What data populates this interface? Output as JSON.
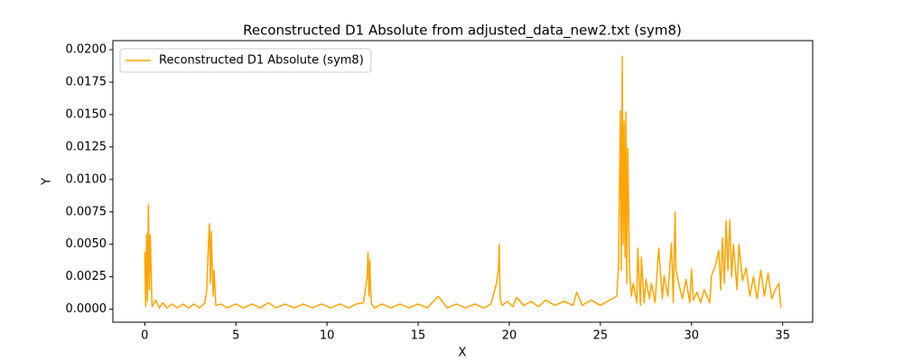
{
  "chart_data": {
    "type": "line",
    "title": "Reconstructed D1 Absolute from adjusted_data_new2.txt (sym8)",
    "x_label": "X",
    "y_label": "Y",
    "xlim": [
      -1.75,
      36.65
    ],
    "ylim": [
      -0.001,
      0.0207
    ],
    "xticks": [
      0,
      5,
      10,
      15,
      20,
      25,
      30,
      35
    ],
    "yticks": [
      {
        "value": 0,
        "label": "0.0000"
      },
      {
        "value": 0.0025,
        "label": "0.0025"
      },
      {
        "value": 0.005,
        "label": "0.0050"
      },
      {
        "value": 0.0075,
        "label": "0.0075"
      },
      {
        "value": 0.01,
        "label": "0.0100"
      },
      {
        "value": 0.0125,
        "label": "0.0125"
      },
      {
        "value": 0.015,
        "label": "0.0150"
      },
      {
        "value": 0.0175,
        "label": "0.0175"
      },
      {
        "value": 0.02,
        "label": "0.0200"
      }
    ],
    "legend": "upper left",
    "x": [
      0,
      0.05,
      0.1,
      0.15,
      0.2,
      0.25,
      0.3,
      0.4,
      0.6,
      0.8,
      1.0,
      1.2,
      1.5,
      1.8,
      2.1,
      2.4,
      2.7,
      3.0,
      3.3,
      3.4,
      3.5,
      3.55,
      3.6,
      3.65,
      3.7,
      3.75,
      3.8,
      3.9,
      4.2,
      4.5,
      5.0,
      5.4,
      5.9,
      6.3,
      6.8,
      7.2,
      7.7,
      8.2,
      8.7,
      9.2,
      9.7,
      10.2,
      10.7,
      11.2,
      11.6,
      12.0,
      12.2,
      12.25,
      12.3,
      12.35,
      12.4,
      12.45,
      12.6,
      13.0,
      13.5,
      14.0,
      14.5,
      15.0,
      15.5,
      16.1,
      16.6,
      17.1,
      17.6,
      18.1,
      18.6,
      19.0,
      19.3,
      19.4,
      19.45,
      19.5,
      19.6,
      19.9,
      20.2,
      20.4,
      20.8,
      21.2,
      21.6,
      22.0,
      22.5,
      23.0,
      23.5,
      23.7,
      24.0,
      24.5,
      25.0,
      25.5,
      25.9,
      26.0,
      26.1,
      26.15,
      26.2,
      26.25,
      26.3,
      26.35,
      26.4,
      26.45,
      26.5,
      26.6,
      26.7,
      26.8,
      27.0,
      27.05,
      27.2,
      27.25,
      27.4,
      27.5,
      27.7,
      27.8,
      28.0,
      28.2,
      28.4,
      28.5,
      28.7,
      28.9,
      29.0,
      29.1,
      29.15,
      29.3,
      29.5,
      29.7,
      29.9,
      30.0,
      30.1,
      30.3,
      30.5,
      30.7,
      31.0,
      31.1,
      31.3,
      31.5,
      31.6,
      31.7,
      31.8,
      31.9,
      32.0,
      32.1,
      32.2,
      32.3,
      32.5,
      32.6,
      32.8,
      33.0,
      33.2,
      33.4,
      33.6,
      33.8,
      34.0,
      34.2,
      34.4,
      34.6,
      34.8,
      34.9
    ],
    "series": [
      {
        "name": "Reconstructed D1 Absolute (sym8)",
        "color": "#ffa500",
        "values": [
          0.0044,
          0.0002,
          0.0058,
          0.0006,
          0.0081,
          0.0015,
          0.0057,
          0.0002,
          0.0007,
          0.0001,
          0.0005,
          0.0001,
          0.0004,
          0.0001,
          0.0004,
          0.0001,
          0.0004,
          0.0001,
          0.0005,
          0.0015,
          0.0052,
          0.0066,
          0.002,
          0.006,
          0.0035,
          0.001,
          0.003,
          0.0003,
          0.0004,
          0.0001,
          0.0004,
          0.0001,
          0.0004,
          0.0001,
          0.0005,
          0.0001,
          0.0004,
          0.0001,
          0.0004,
          0.0001,
          0.0004,
          0.0001,
          0.0004,
          0.0001,
          0.0004,
          0.0005,
          0.0025,
          0.0044,
          0.001,
          0.0038,
          0.0012,
          0.0004,
          0.0001,
          0.0004,
          0.0001,
          0.0004,
          0.0001,
          0.0004,
          0.0001,
          0.001,
          0.0001,
          0.0004,
          0.0001,
          0.0004,
          0.0001,
          0.0004,
          0.002,
          0.003,
          0.005,
          0.0008,
          0.0003,
          0.0006,
          0.0002,
          0.0009,
          0.0003,
          0.0006,
          0.0002,
          0.0007,
          0.0003,
          0.0006,
          0.0003,
          0.0013,
          0.0003,
          0.0007,
          0.0003,
          0.0007,
          0.001,
          0.0035,
          0.0153,
          0.003,
          0.0195,
          0.005,
          0.0145,
          0.004,
          0.0152,
          0.002,
          0.0124,
          0.003,
          0.001,
          0.002,
          0.0005,
          0.0047,
          0.0003,
          0.004,
          0.0005,
          0.0023,
          0.0008,
          0.002,
          0.0005,
          0.0047,
          0.0008,
          0.0026,
          0.001,
          0.0051,
          0.0005,
          0.0075,
          0.003,
          0.002,
          0.0008,
          0.0023,
          0.0005,
          0.0031,
          0.0007,
          0.0013,
          0.0005,
          0.0015,
          0.0005,
          0.0026,
          0.0033,
          0.0045,
          0.0015,
          0.0055,
          0.002,
          0.0068,
          0.003,
          0.0069,
          0.0025,
          0.005,
          0.0015,
          0.005,
          0.0022,
          0.0032,
          0.001,
          0.0025,
          0.0008,
          0.003,
          0.001,
          0.0028,
          0.0008,
          0.0015,
          0.002,
          0.0001
        ]
      }
    ]
  }
}
